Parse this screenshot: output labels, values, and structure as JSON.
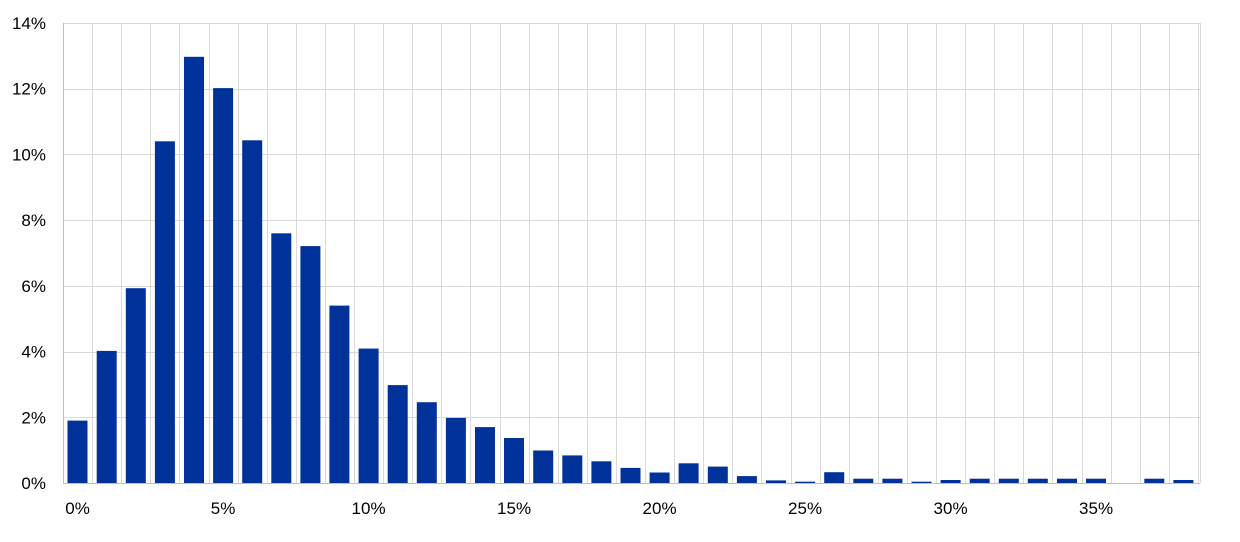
{
  "chart_data": {
    "type": "bar",
    "title": "",
    "xlabel": "",
    "ylabel": "",
    "ylim": [
      0,
      14
    ],
    "y_ticks": [
      0,
      2,
      4,
      6,
      8,
      10,
      12,
      14
    ],
    "y_tick_labels": [
      "0%",
      "2%",
      "4%",
      "6%",
      "8%",
      "10%",
      "12%",
      "14%"
    ],
    "x_tick_labels": [
      {
        "category": 0,
        "label": "0%"
      },
      {
        "category": 5,
        "label": "5%"
      },
      {
        "category": 10,
        "label": "10%"
      },
      {
        "category": 15,
        "label": "15%"
      },
      {
        "category": 20,
        "label": "20%"
      },
      {
        "category": 25,
        "label": "25%"
      },
      {
        "category": 30,
        "label": "30%"
      },
      {
        "category": 35,
        "label": "35%"
      }
    ],
    "categories": [
      0,
      1,
      2,
      3,
      4,
      5,
      6,
      7,
      8,
      9,
      10,
      11,
      12,
      13,
      14,
      15,
      16,
      17,
      18,
      19,
      20,
      21,
      22,
      23,
      24,
      25,
      26,
      27,
      28,
      29,
      30,
      31,
      32,
      33,
      34,
      35,
      36,
      37,
      38
    ],
    "values": [
      1.9,
      4.02,
      5.93,
      10.4,
      12.97,
      12.02,
      10.43,
      7.6,
      7.21,
      5.4,
      4.09,
      2.98,
      2.46,
      1.98,
      1.7,
      1.37,
      0.99,
      0.84,
      0.66,
      0.46,
      0.32,
      0.6,
      0.5,
      0.21,
      0.08,
      0.04,
      0.33,
      0.13,
      0.13,
      0.04,
      0.09,
      0.13,
      0.13,
      0.13,
      0.13,
      0.13,
      0.0,
      0.13,
      0.09
    ],
    "grid": true,
    "legend": "none",
    "colors": {
      "bar": "#003299",
      "grid": "#d9d9d9",
      "axis": "#bfbfbf",
      "text": "#000000"
    }
  }
}
